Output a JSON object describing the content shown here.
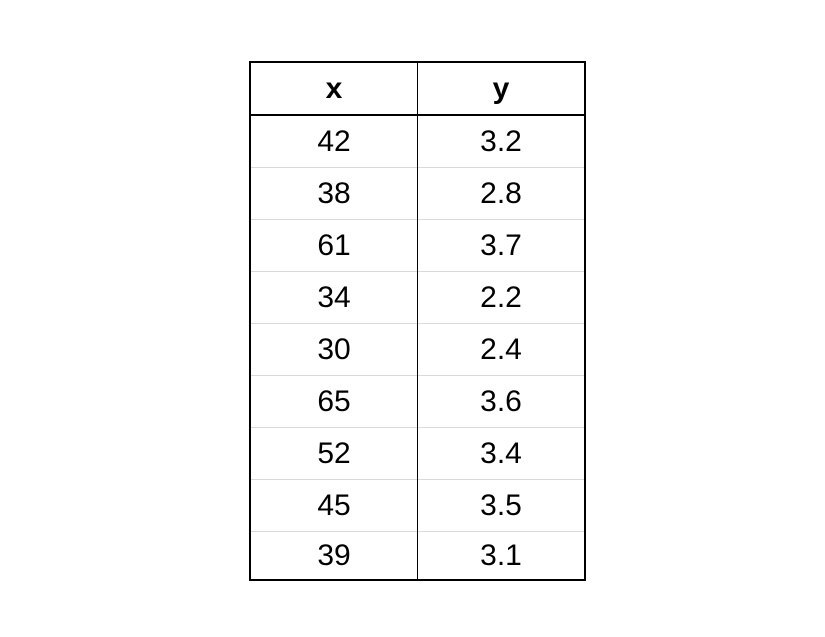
{
  "chart_data": {
    "type": "table",
    "columns": [
      "x",
      "y"
    ],
    "rows": [
      [
        "42",
        "3.2"
      ],
      [
        "38",
        "2.8"
      ],
      [
        "61",
        "3.7"
      ],
      [
        "34",
        "2.2"
      ],
      [
        "30",
        "2.4"
      ],
      [
        "65",
        "3.6"
      ],
      [
        "52",
        "3.4"
      ],
      [
        "45",
        "3.5"
      ],
      [
        "39",
        "3.1"
      ]
    ]
  }
}
